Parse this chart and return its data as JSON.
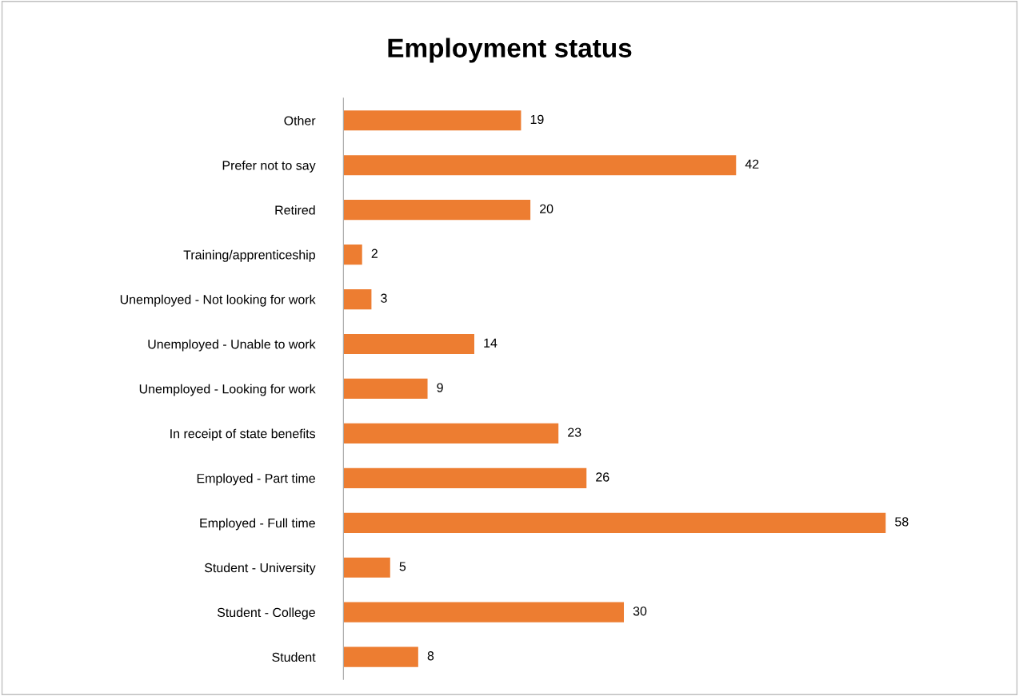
{
  "chart_data": {
    "type": "bar",
    "title": "Employment status",
    "orientation": "horizontal",
    "categories": [
      "Other",
      "Prefer not to say",
      "Retired",
      "Training/apprenticeship",
      "Unemployed - Not looking for work",
      "Unemployed - Unable to work",
      "Unemployed - Looking for work",
      "In receipt of state benefits",
      "Employed - Part time",
      "Employed - Full time",
      "Student - University",
      "Student - College",
      "Student"
    ],
    "values": [
      19,
      42,
      20,
      2,
      3,
      14,
      9,
      23,
      26,
      58,
      5,
      30,
      8
    ],
    "color": "#ed7d31",
    "data_labels": true,
    "grid": false,
    "legend": false,
    "tick_labels": "y"
  }
}
